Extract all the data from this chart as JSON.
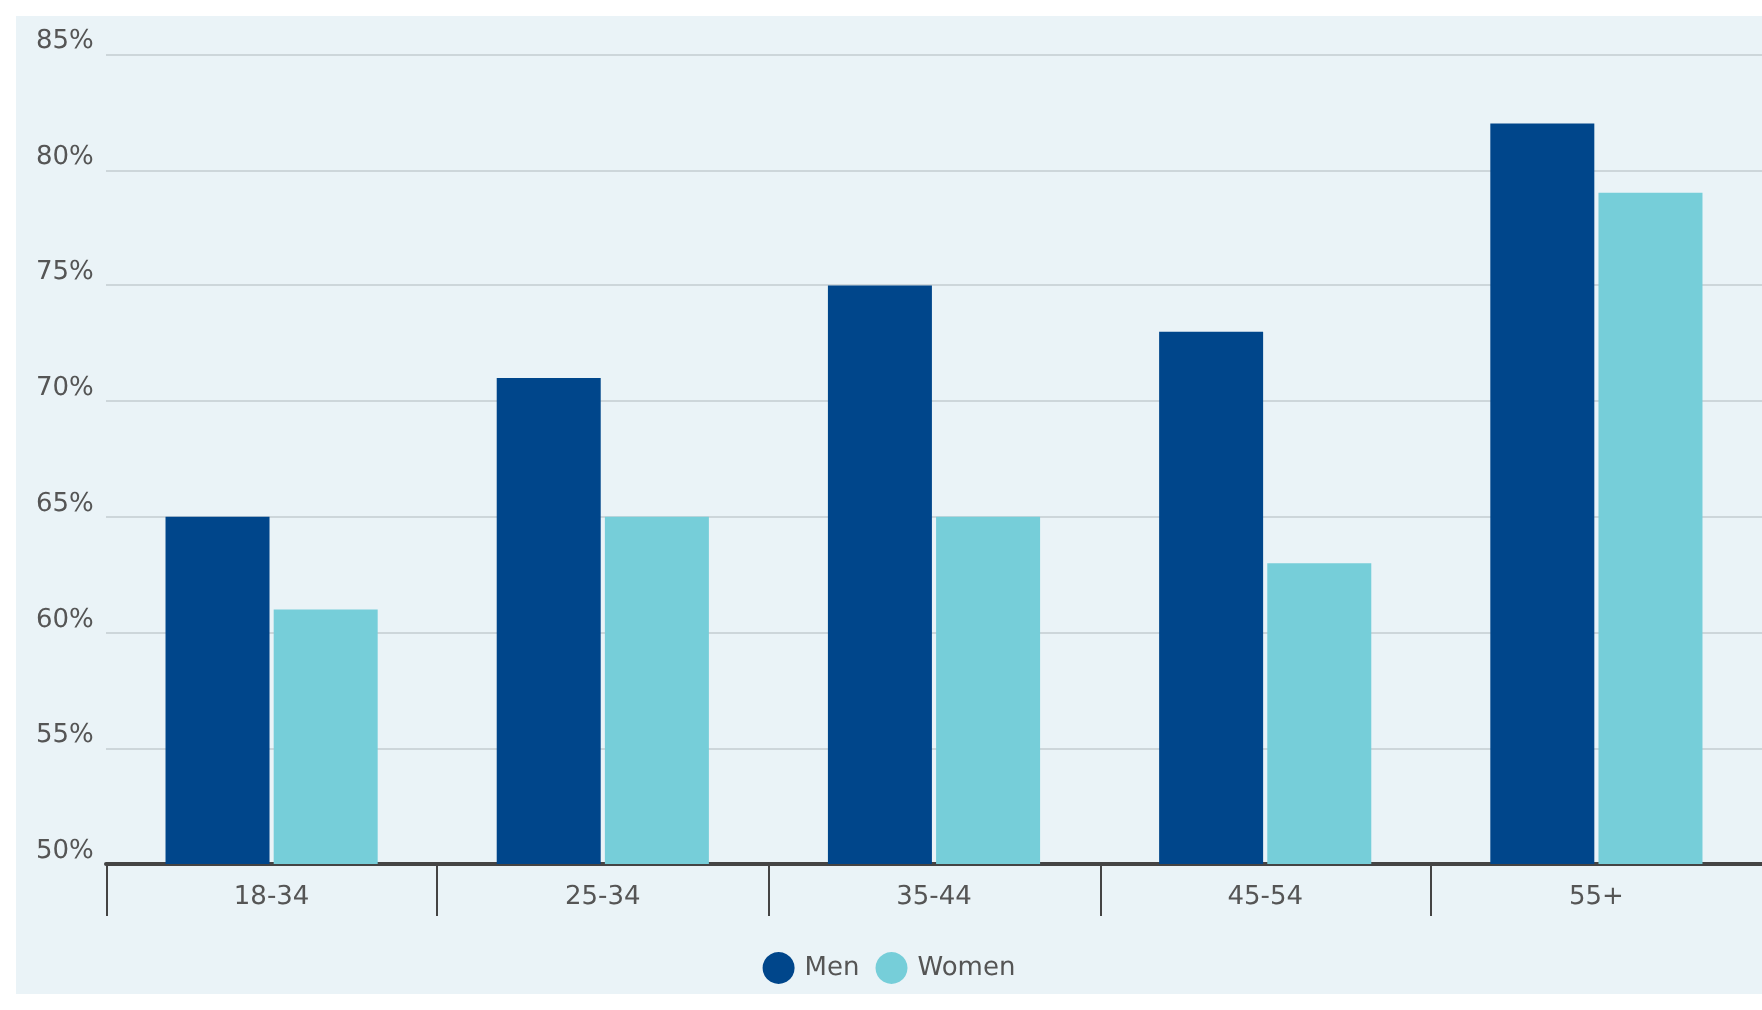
{
  "chart_data": {
    "type": "bar",
    "categories": [
      "18-34",
      "25-34",
      "35-44",
      "45-54",
      "55+"
    ],
    "series": [
      {
        "name": "Men",
        "color": "#00468b",
        "values": [
          65,
          71,
          75,
          73,
          82
        ]
      },
      {
        "name": "Women",
        "color": "#76ced9",
        "values": [
          61,
          65,
          65,
          63,
          79
        ]
      }
    ],
    "ylim": [
      50,
      85
    ],
    "yticks": [
      {
        "value": 50,
        "label": "50%"
      },
      {
        "value": 55,
        "label": "55%"
      },
      {
        "value": 60,
        "label": "60%"
      },
      {
        "value": 65,
        "label": "65%"
      },
      {
        "value": 70,
        "label": "70%"
      },
      {
        "value": 75,
        "label": "75%"
      },
      {
        "value": 80,
        "label": "80%"
      },
      {
        "value": 85,
        "label": "85%"
      }
    ],
    "grid": "y",
    "legend": "bottom"
  }
}
